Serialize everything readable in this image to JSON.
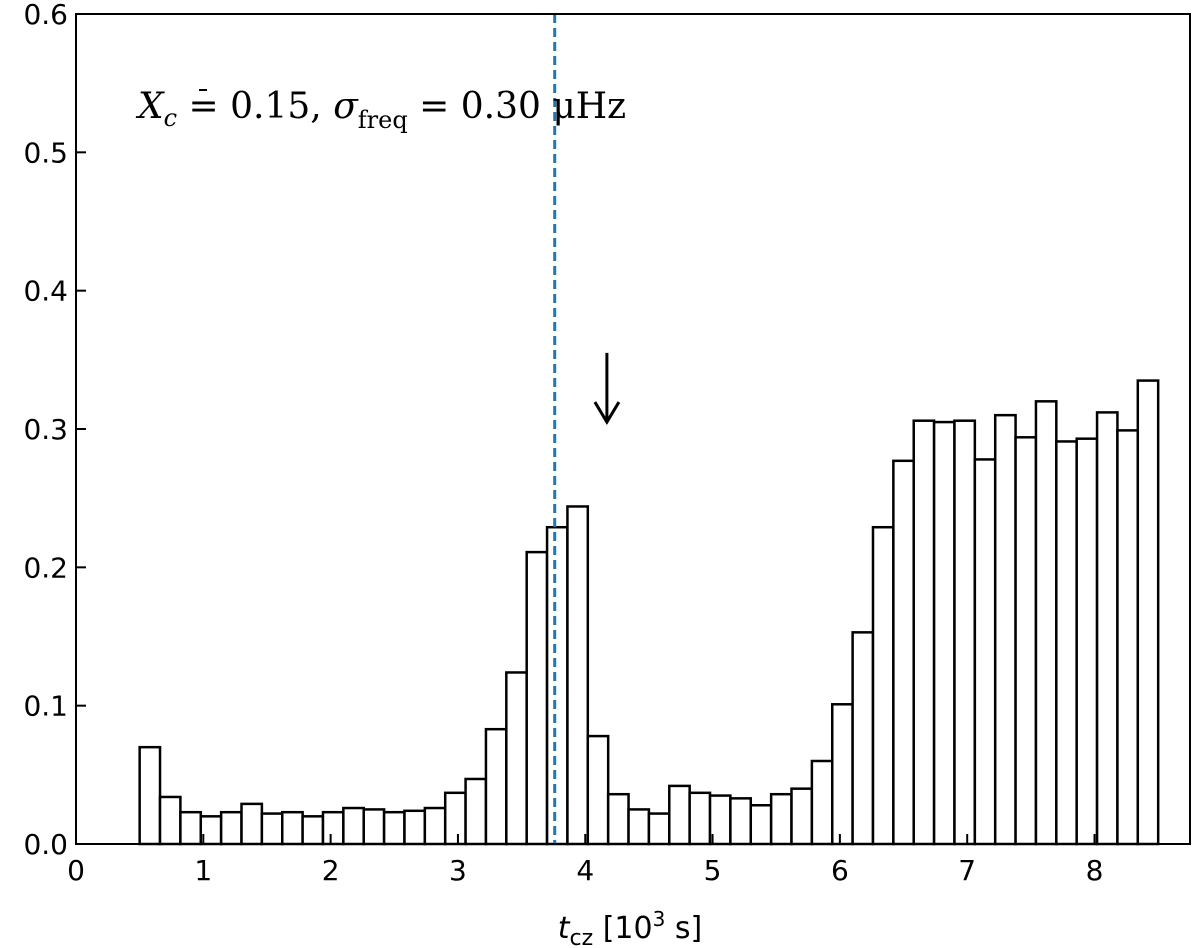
{
  "chart_data": {
    "type": "bar",
    "annotation": {
      "xc_symbol": "X",
      "xc_sub": "c",
      "xc_value": " = 0.15, ",
      "sigma_symbol": "σ",
      "sigma_sub": "freq",
      "sigma_value": " = 0.30 μHz"
    },
    "xlabel": {
      "symbol": "t",
      "sub": "cz",
      "unit_prefix": " [10",
      "unit_sup": "3",
      "unit_suffix": " s]"
    },
    "ylabel": "",
    "xlim": [
      0,
      8.75
    ],
    "ylim": [
      0,
      0.6
    ],
    "xticks": [
      0,
      1,
      2,
      3,
      4,
      5,
      6,
      7,
      8
    ],
    "yticks": [
      0.0,
      0.1,
      0.2,
      0.3,
      0.4,
      0.5,
      0.6
    ],
    "grid": false,
    "bin_width": 0.16,
    "bin_start": 0.5,
    "values": [
      0.07,
      0.034,
      0.023,
      0.02,
      0.023,
      0.029,
      0.022,
      0.023,
      0.02,
      0.023,
      0.026,
      0.025,
      0.023,
      0.024,
      0.026,
      0.037,
      0.047,
      0.083,
      0.124,
      0.211,
      0.229,
      0.244,
      0.078,
      0.036,
      0.025,
      0.022,
      0.042,
      0.037,
      0.035,
      0.033,
      0.028,
      0.036,
      0.04,
      0.06,
      0.101,
      0.153,
      0.229,
      0.277,
      0.306,
      0.305,
      0.306,
      0.278,
      0.31,
      0.294,
      0.32,
      0.291,
      0.293,
      0.312,
      0.299,
      0.335
    ],
    "vline": {
      "x": 3.76,
      "color": "#1f77b4",
      "style": "dashed"
    },
    "arrow": {
      "x": 4.17,
      "y_from": 0.355,
      "y_to": 0.305
    },
    "colors": {
      "bar_edge": "#000000",
      "bar_fill": "#ffffff"
    }
  }
}
